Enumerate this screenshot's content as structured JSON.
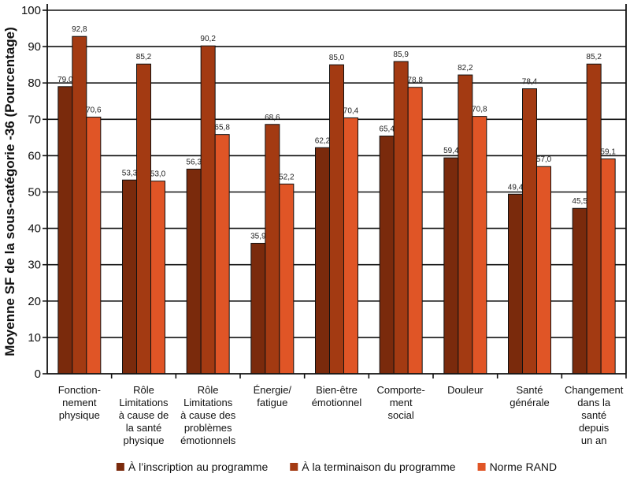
{
  "chart_data": {
    "type": "bar",
    "title": "",
    "xlabel": "",
    "ylabel": "Moyenne SF de la sous-catégorie -36 (Pourcentage)",
    "ylim": [
      0,
      100
    ],
    "yticks": [
      0,
      10,
      20,
      30,
      40,
      50,
      60,
      70,
      80,
      90,
      100
    ],
    "grid": true,
    "legend_position": "bottom",
    "categories": [
      [
        "Fonction-",
        "nement",
        "physique"
      ],
      [
        "Rôle",
        "Limitations",
        "à cause de",
        "la santé",
        "physique"
      ],
      [
        "Rôle",
        "Limitations",
        "à cause des",
        "problèmes",
        "émotionnels"
      ],
      [
        "Énergie/",
        "fatigue"
      ],
      [
        "Bien-être",
        "émotionnel"
      ],
      [
        "Comporte-",
        "ment",
        "social"
      ],
      [
        "Douleur"
      ],
      [
        "Santé",
        "générale"
      ],
      [
        "Changement",
        "dans la",
        "santé",
        "depuis",
        "un an"
      ]
    ],
    "series": [
      {
        "name": "À l’inscription au programme",
        "color": "#7a2a0c",
        "values": [
          79.0,
          53.3,
          56.3,
          35.9,
          62.2,
          65.4,
          59.4,
          49.4,
          45.5
        ],
        "labels": [
          "79,0",
          "53,3",
          "56,3",
          "35,9",
          "62,2",
          "65,4",
          "59,4",
          "49,4",
          "45,5"
        ]
      },
      {
        "name": "À la terminaison du programme",
        "color": "#a33a12",
        "values": [
          92.8,
          85.2,
          90.2,
          68.6,
          85.0,
          85.9,
          82.2,
          78.4,
          85.2
        ],
        "labels": [
          "92,8",
          "85,2",
          "90,2",
          "68,6",
          "85,0",
          "85,9",
          "82,2",
          "78,4",
          "85,2"
        ]
      },
      {
        "name": "Norme RAND",
        "color": "#e05526",
        "values": [
          70.6,
          53.0,
          65.8,
          52.2,
          70.4,
          78.8,
          70.8,
          57.0,
          59.1
        ],
        "labels": [
          "70,6",
          "53,0",
          "65,8",
          "52,2",
          "70,4",
          "78,8",
          "70,8",
          "57,0",
          "59,1"
        ]
      }
    ]
  }
}
